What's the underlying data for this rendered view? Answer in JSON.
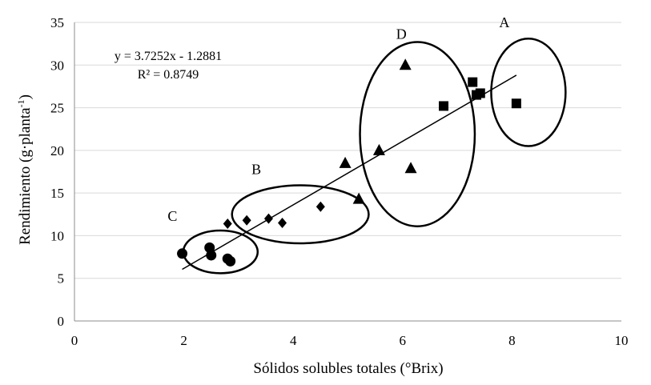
{
  "chart_data": {
    "type": "scatter",
    "title": "",
    "xlabel": "Sólidos solubles totales (°Brix)",
    "ylabel_parts": [
      "Rendimiento (g·planta",
      "-1",
      ")"
    ],
    "xlim": [
      0,
      10
    ],
    "ylim": [
      0,
      35
    ],
    "xticks": [
      "0",
      "2",
      "4",
      "6",
      "8",
      "10"
    ],
    "yticks": [
      "0",
      "5",
      "10",
      "15",
      "20",
      "25",
      "30",
      "35"
    ],
    "grid": "horizontal",
    "colors": {
      "marker": "#000000",
      "grid": "#d9d9d9",
      "axis": "#8c8c8c"
    },
    "series": [
      {
        "marker": "circle",
        "points": [
          [
            1.97,
            7.9
          ],
          [
            2.47,
            8.6
          ],
          [
            2.5,
            7.7
          ],
          [
            2.8,
            7.3
          ],
          [
            2.85,
            7.0
          ]
        ]
      },
      {
        "marker": "diamond",
        "points": [
          [
            2.8,
            11.4
          ],
          [
            3.15,
            11.8
          ],
          [
            3.55,
            12.0
          ],
          [
            3.8,
            11.5
          ],
          [
            4.5,
            13.4
          ]
        ]
      },
      {
        "marker": "triangle",
        "points": [
          [
            4.95,
            18.5
          ],
          [
            5.2,
            14.3
          ],
          [
            5.57,
            20.0
          ],
          [
            6.05,
            30.0
          ],
          [
            6.15,
            17.9
          ]
        ]
      },
      {
        "marker": "square",
        "points": [
          [
            6.75,
            25.2
          ],
          [
            7.28,
            28.0
          ],
          [
            7.35,
            26.5
          ],
          [
            7.42,
            26.7
          ],
          [
            8.08,
            25.5
          ]
        ]
      }
    ],
    "trendline": {
      "slope": 3.7252,
      "intercept": -1.2881,
      "x_range": [
        1.97,
        8.08
      ]
    },
    "equation": "y = 3.7252x - 1.2881",
    "r_squared": "R² = 0.8749",
    "groups": [
      {
        "label": "A",
        "cx": 8.3,
        "cy": 26.8,
        "rx": 0.68,
        "ry": 6.3
      },
      {
        "label": "B",
        "cx": 4.13,
        "cy": 12.5,
        "rx": 1.25,
        "ry": 3.4
      },
      {
        "label": "C",
        "cx": 2.67,
        "cy": 8.1,
        "rx": 0.68,
        "ry": 2.5
      },
      {
        "label": "D",
        "cx": 6.27,
        "cy": 21.9,
        "rx": 1.05,
        "ry": 10.8
      }
    ]
  }
}
